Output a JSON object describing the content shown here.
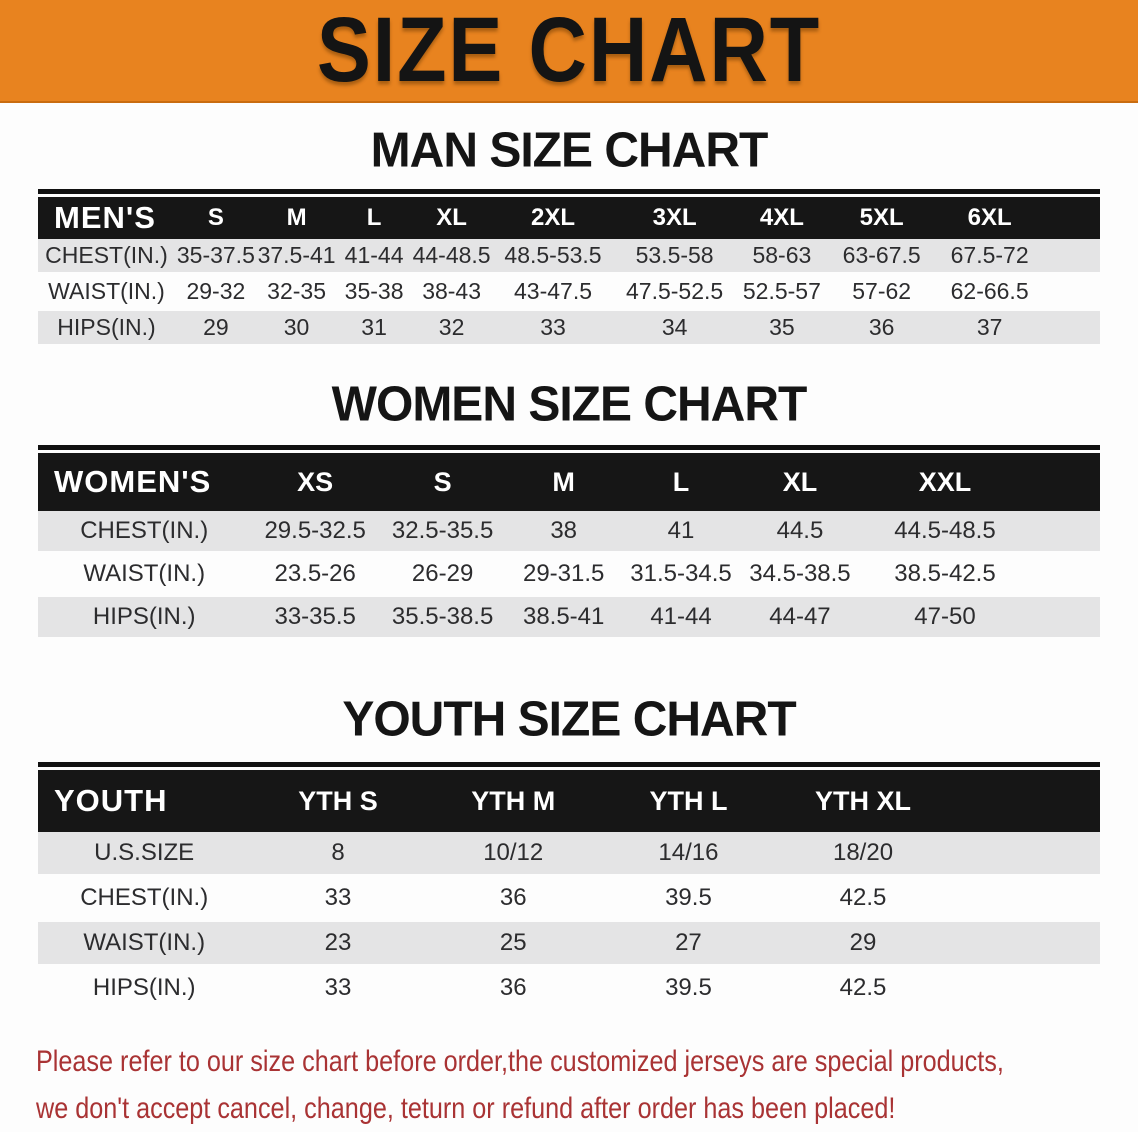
{
  "banner": {
    "title": "SIZE CHART",
    "bg_color": "#e8831f",
    "text_color": "#141414"
  },
  "sections": [
    {
      "heading": "MAN SIZE CHART",
      "table": {
        "label": "MEN'S",
        "columns": [
          "S",
          "M",
          "L",
          "XL",
          "2XL",
          "3XL",
          "4XL",
          "5XL",
          "6XL"
        ],
        "rows": [
          {
            "label": "CHEST(IN.)",
            "values": [
              "35-37.5",
              "37.5-41",
              "41-44",
              "44-48.5",
              "48.5-53.5",
              "53.5-58",
              "58-63",
              "63-67.5",
              "67.5-72"
            ]
          },
          {
            "label": "WAIST(IN.)",
            "values": [
              "29-32",
              "32-35",
              "35-38",
              "38-43",
              "43-47.5",
              "47.5-52.5",
              "52.5-57",
              "57-62",
              "62-66.5"
            ]
          },
          {
            "label": "HIPS(IN.)",
            "values": [
              "29",
              "30",
              "31",
              "32",
              "33",
              "34",
              "35",
              "36",
              "37"
            ]
          }
        ]
      }
    },
    {
      "heading": "WOMEN SIZE CHART",
      "table": {
        "label": "WOMEN'S",
        "columns": [
          "XS",
          "S",
          "M",
          "L",
          "XL",
          "XXL"
        ],
        "rows": [
          {
            "label": "CHEST(IN.)",
            "values": [
              "29.5-32.5",
              "32.5-35.5",
              "38",
              "41",
              "44.5",
              "44.5-48.5"
            ]
          },
          {
            "label": "WAIST(IN.)",
            "values": [
              "23.5-26",
              "26-29",
              "29-31.5",
              "31.5-34.5",
              "34.5-38.5",
              "38.5-42.5"
            ]
          },
          {
            "label": "HIPS(IN.)",
            "values": [
              "33-35.5",
              "35.5-38.5",
              "38.5-41",
              "41-44",
              "44-47",
              "47-50"
            ]
          }
        ]
      }
    },
    {
      "heading": "YOUTH SIZE CHART",
      "table": {
        "label": "YOUTH",
        "columns": [
          "YTH S",
          "YTH M",
          "YTH L",
          "YTH XL"
        ],
        "rows": [
          {
            "label": "U.S.SIZE",
            "values": [
              "8",
              "10/12",
              "14/16",
              "18/20"
            ]
          },
          {
            "label": "CHEST(IN.)",
            "values": [
              "33",
              "36",
              "39.5",
              "42.5"
            ]
          },
          {
            "label": "WAIST(IN.)",
            "values": [
              "23",
              "25",
              "27",
              "29"
            ]
          },
          {
            "label": "HIPS(IN.)",
            "values": [
              "33",
              "36",
              "39.5",
              "42.5"
            ]
          }
        ]
      }
    }
  ],
  "footer": {
    "line1": "Please refer to our size chart before order,the customized jerseys are special products,",
    "line2": "we don't accept cancel, change, teturn or refund after order has been placed!",
    "text_color": "#a93334"
  },
  "colors": {
    "banner_orange": "#e8831f",
    "table_header_black": "#161616",
    "row_stripe_gray": "#e4e4e5",
    "note_red": "#a93334"
  }
}
